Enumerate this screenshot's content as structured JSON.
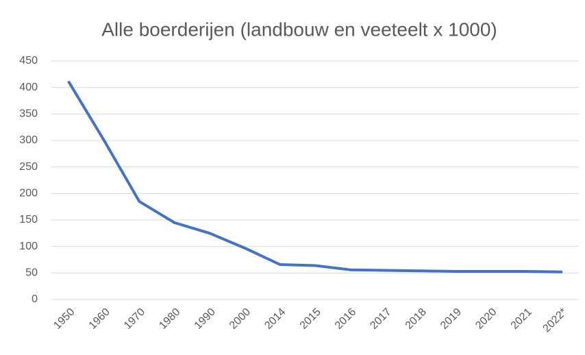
{
  "chart_data": {
    "type": "line",
    "title": "Alle boerderijen (landbouw en veeteelt x 1000)",
    "categories": [
      "1950",
      "1960",
      "1970",
      "1980",
      "1990",
      "2000",
      "2014",
      "2015",
      "2016",
      "2017",
      "2018",
      "2019",
      "2020",
      "2021",
      "2022*"
    ],
    "values": [
      410,
      300,
      185,
      145,
      125,
      97,
      66,
      64,
      56,
      55,
      54,
      53,
      53,
      53,
      52
    ],
    "color": "#4472c4",
    "ylim": [
      0,
      450
    ],
    "yticks": [
      0,
      50,
      100,
      150,
      200,
      250,
      300,
      350,
      400,
      450
    ],
    "grid": true
  }
}
